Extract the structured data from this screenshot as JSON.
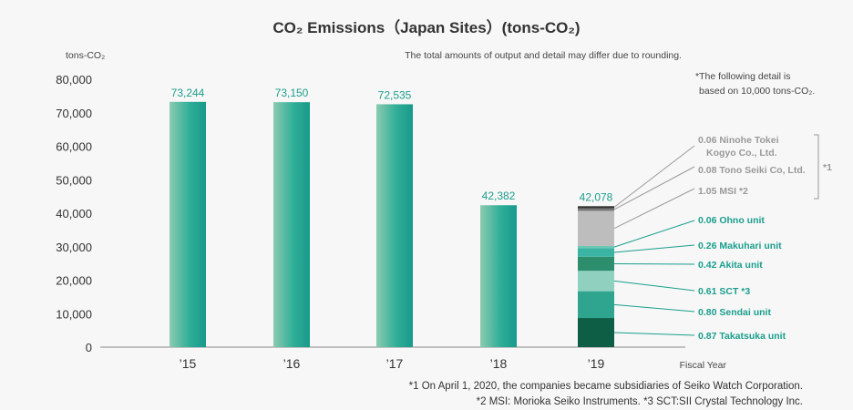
{
  "chart_data": {
    "type": "bar",
    "title": "CO₂ Emissions（Japan Sites）(tons-CO₂)",
    "ylabel": "tons-CO₂",
    "xlabel": "Fiscal Year",
    "ylim": [
      0,
      80000
    ],
    "yticks": [
      "0",
      "10,000",
      "20,000",
      "30,000",
      "40,000",
      "50,000",
      "60,000",
      "70,000",
      "80,000"
    ],
    "note_rounding": "The total amounts of output and detail may differ due to rounding.",
    "note_detail_line1": "*The following detail is",
    "note_detail_line2": "based on 10,000 tons-CO₂.",
    "categories": [
      "’15",
      "’16",
      "’17",
      "’18",
      "’19"
    ],
    "values": [
      73244,
      73150,
      72535,
      42382,
      42078
    ],
    "value_labels": [
      "73,244",
      "73,150",
      "72,535",
      "42,382",
      "42,078"
    ],
    "breakdown_2019": [
      {
        "label": "0.87 Takatsuka unit",
        "value": 0.87,
        "color": "#0e5e46"
      },
      {
        "label": "0.80 Sendai unit",
        "value": 0.8,
        "color": "#2fa58f"
      },
      {
        "label": "0.61 SCT *3",
        "value": 0.61,
        "color": "#8fd0bf"
      },
      {
        "label": "0.42 Akita unit",
        "value": 0.42,
        "color": "#2c8e6c"
      },
      {
        "label": "0.26 Makuhari unit",
        "value": 0.26,
        "color": "#3cb4a4"
      },
      {
        "label": "0.06 Ohno unit",
        "value": 0.06,
        "color": "#6bc8b5"
      },
      {
        "label": "1.05 MSI *2",
        "value": 1.05,
        "color": "#bdbdbd"
      },
      {
        "label": "0.08 Tono Seiki Co, Ltd.",
        "value": 0.08,
        "color": "#777777"
      },
      {
        "label": "0.06 Ninohe Tokei Kogyo Co., Ltd.",
        "value": 0.06,
        "color": "#333333"
      }
    ],
    "bracket_label": "*1",
    "footnote1": "*1 On April 1, 2020, the companies became subsidiaries of Seiko Watch Corporation.",
    "footnote2": "*2 MSI: Morioka Seiko Instruments. *3 SCT:SII Crystal Technology Inc.",
    "grid": false,
    "colors": {
      "bar_light": "#8ccbb0",
      "bar_dark": "#1a9e8d",
      "accent": "#1a9e8d",
      "gray_text": "#999999"
    }
  }
}
